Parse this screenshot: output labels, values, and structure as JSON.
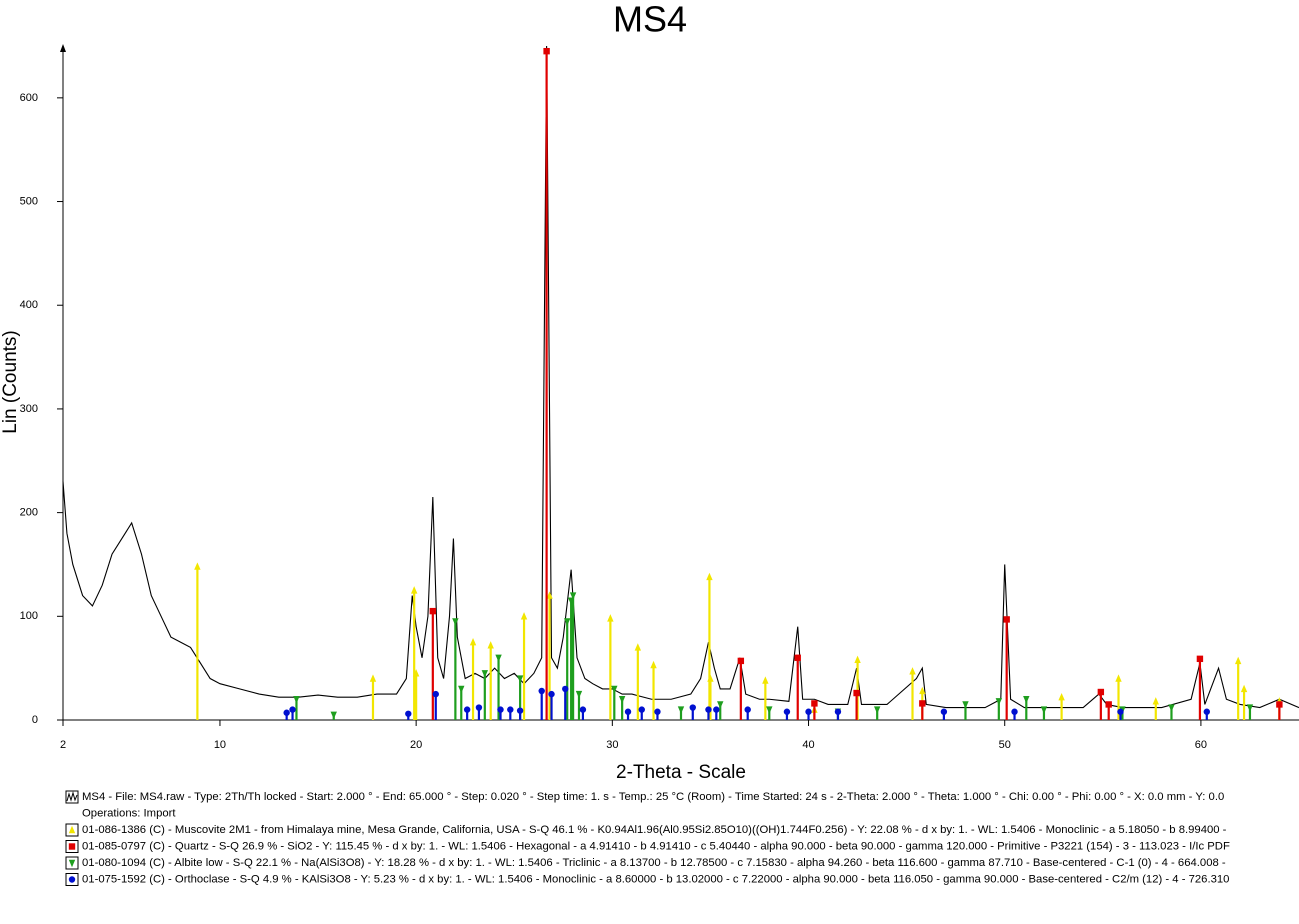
{
  "chart_data": {
    "type": "line",
    "title": "MS4",
    "x_label": "2-Theta - Scale",
    "y_label": "Lin (Counts)",
    "xlim": [
      2,
      65
    ],
    "ylim": [
      0,
      650
    ],
    "xticks": [
      2,
      10,
      20,
      30,
      40,
      50,
      60
    ],
    "yticks": [
      0,
      100,
      200,
      300,
      400,
      500,
      600
    ],
    "operations": "Operations: Import",
    "series": [
      {
        "name": "MS4 - File: MS4.raw - Type: 2Th/Th locked - Start: 2.000 ° - End: 65.000 ° - Step: 0.020 ° - Step time: 1. s - Temp.: 25 °C (Room) - Time Started: 24 s - 2-Theta: 2.000 ° - Theta: 1.000 ° - Chi: 0.00 ° - Phi: 0.00 ° - X: 0.0 mm - Y: 0.0",
        "color": "#000000",
        "style": "line",
        "x": [
          2.0,
          2.2,
          2.5,
          3,
          3.5,
          4,
          4.5,
          5,
          5.5,
          6,
          6.5,
          7,
          7.5,
          8,
          8.5,
          9,
          9.5,
          10,
          11,
          12,
          13,
          14,
          15,
          16,
          17,
          18,
          19,
          19.5,
          19.8,
          20,
          20.3,
          20.6,
          20.85,
          21.1,
          21.4,
          21.7,
          21.9,
          22.1,
          22.5,
          23,
          23.5,
          24,
          24.5,
          25,
          25.5,
          26,
          26.4,
          26.65,
          26.9,
          27.2,
          27.5,
          27.9,
          28.2,
          28.6,
          29,
          29.5,
          30,
          30.5,
          31,
          32,
          33,
          34,
          34.5,
          34.9,
          35.2,
          35.5,
          36,
          36.5,
          36.8,
          37.5,
          38,
          39,
          39.45,
          39.7,
          40.3,
          41,
          42,
          42.45,
          42.7,
          44,
          45.5,
          45.8,
          46,
          47,
          48,
          49,
          49.8,
          50.0,
          50.3,
          51,
          52,
          53,
          54,
          54.8,
          55.2,
          56,
          57,
          58,
          59.5,
          59.95,
          60.2,
          60.9,
          61.3,
          62,
          63,
          64,
          65
        ],
        "values": [
          230,
          180,
          150,
          120,
          110,
          130,
          160,
          175,
          190,
          160,
          120,
          100,
          80,
          75,
          70,
          55,
          40,
          35,
          30,
          25,
          22,
          22,
          24,
          22,
          22,
          25,
          25,
          40,
          120,
          90,
          60,
          100,
          215,
          60,
          40,
          100,
          175,
          80,
          40,
          45,
          40,
          50,
          40,
          45,
          35,
          45,
          60,
          650,
          60,
          50,
          80,
          145,
          60,
          40,
          35,
          30,
          30,
          25,
          25,
          20,
          20,
          25,
          40,
          75,
          50,
          30,
          30,
          60,
          25,
          20,
          20,
          18,
          90,
          20,
          20,
          15,
          15,
          50,
          15,
          15,
          40,
          50,
          15,
          12,
          12,
          12,
          20,
          150,
          20,
          12,
          12,
          12,
          12,
          25,
          15,
          12,
          12,
          12,
          20,
          55,
          15,
          50,
          20,
          15,
          12,
          20,
          12
        ]
      },
      {
        "name": "01-086-1386 (C) - Muscovite 2M1 - from Himalaya mine, Mesa Grande, California, USA - S-Q 46.1 % - K0.94Al1.96(Al0.95Si2.85O10)((OH)1.744F0.256) - Y: 22.08 % - d x by: 1. - WL: 1.5406 - Monoclinic - a 5.18050 - b 8.99400 -",
        "color": "#f2e600",
        "style": "sticks",
        "marker": "triangle-up",
        "x": [
          8.85,
          17.8,
          19.9,
          20.0,
          22.9,
          23.8,
          25.5,
          26.8,
          29.9,
          31.3,
          32.1,
          34.95,
          35.0,
          37.8,
          40.3,
          42.5,
          45.3,
          45.8,
          52.9,
          55.8,
          57.7,
          61.9,
          62.2,
          64.0
        ],
        "values": [
          148,
          40,
          125,
          45,
          75,
          72,
          100,
          120,
          98,
          70,
          53,
          138,
          40,
          38,
          10,
          58,
          47,
          28,
          22,
          40,
          18,
          57,
          30,
          18
        ]
      },
      {
        "name": "01-085-0797 (C) - Quartz - S-Q 26.9 % - SiO2 - Y: 115.45 % - d x by: 1. - WL: 1.5406 - Hexagonal - a 4.91410 - b 4.91410 - c 5.40440 - alpha 90.000 - beta 90.000 - gamma 120.000 - Primitive - P3221 (154) - 3 - 113.023 - I/Ic PDF",
        "color": "#e00000",
        "style": "sticks",
        "marker": "square",
        "x": [
          20.85,
          26.65,
          36.55,
          39.45,
          40.3,
          42.45,
          45.8,
          50.1,
          54.9,
          55.3,
          59.95,
          64.0
        ],
        "values": [
          105,
          645,
          57,
          60,
          16,
          26,
          16,
          97,
          27,
          15,
          59,
          15
        ]
      },
      {
        "name": "01-080-1094 (C) - Albite low - S-Q 22.1 % - Na(AlSi3O8) - Y: 18.28 % - d x by: 1. - WL: 1.5406 - Triclinic - a 8.13700 - b 12.78500 - c 7.15830 - alpha 94.260 - beta 116.600 - gamma 87.710 - Base-centered - C-1 (0) - 4 - 664.008 -",
        "color": "#1e9e1e",
        "style": "sticks",
        "marker": "triangle-down",
        "x": [
          13.9,
          15.8,
          22.0,
          22.3,
          23.5,
          24.2,
          25.3,
          27.7,
          27.9,
          28.0,
          28.3,
          30.1,
          30.5,
          33.5,
          35.5,
          38.0,
          41.5,
          43.5,
          48.0,
          49.7,
          51.1,
          52.0,
          56.0,
          58.5,
          62.5
        ],
        "values": [
          20,
          5,
          95,
          30,
          45,
          60,
          40,
          95,
          115,
          120,
          25,
          30,
          20,
          10,
          15,
          10,
          8,
          10,
          15,
          18,
          20,
          10,
          10,
          12,
          12
        ]
      },
      {
        "name": "01-075-1592 (C) - Orthoclase - S-Q 4.9 % - KAlSi3O8 - Y: 5.23 % - d x by: 1. - WL: 1.5406 - Monoclinic - a 8.60000 - b 13.02000 - c 7.22000 - alpha 90.000 - beta 116.050 - gamma 90.000 - Base-centered - C2/m (12) - 4 - 726.310",
        "color": "#0010d0",
        "style": "sticks",
        "marker": "circle",
        "x": [
          13.4,
          13.7,
          19.6,
          21.0,
          22.6,
          23.2,
          24.3,
          24.8,
          25.3,
          26.4,
          26.9,
          27.6,
          28.5,
          30.8,
          31.5,
          32.3,
          34.1,
          34.9,
          35.3,
          36.9,
          38.9,
          40.0,
          41.5,
          46.9,
          50.5,
          55.9,
          60.3
        ],
        "values": [
          7,
          10,
          6,
          25,
          10,
          12,
          10,
          10,
          9,
          28,
          25,
          30,
          10,
          8,
          10,
          8,
          12,
          10,
          10,
          10,
          8,
          8,
          8,
          8,
          8,
          8,
          8
        ]
      }
    ]
  }
}
